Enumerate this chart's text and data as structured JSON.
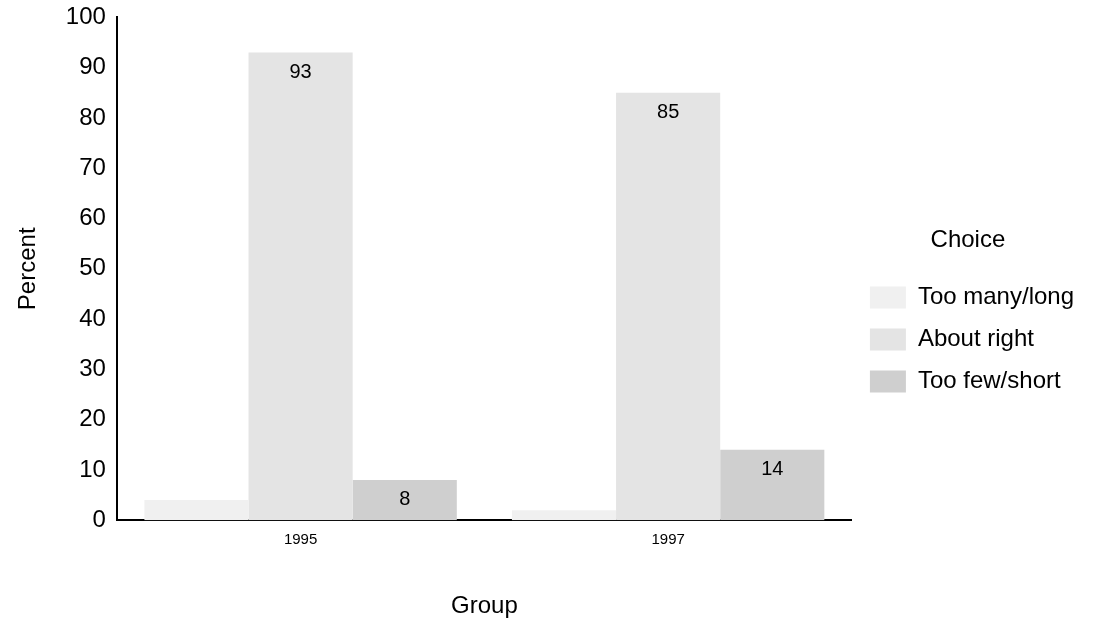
{
  "chart_data": {
    "type": "bar",
    "xlabel": "Group",
    "ylabel": "Percent",
    "legend_title": "Choice",
    "legend": "right",
    "categories": [
      "1995",
      "1997"
    ],
    "series": [
      {
        "name": "Too many/long",
        "color": "#f0f0f0",
        "values": [
          4,
          2
        ],
        "value_labels": [
          null,
          null
        ]
      },
      {
        "name": "About right",
        "color": "#e4e4e4",
        "values": [
          93,
          85
        ],
        "value_labels": [
          "93",
          "85"
        ]
      },
      {
        "name": "Too few/short",
        "color": "#cfcfcf",
        "values": [
          8,
          14
        ],
        "value_labels": [
          "8",
          "14"
        ]
      }
    ],
    "ylim": [
      0,
      100
    ],
    "yticks": [
      0,
      10,
      20,
      30,
      40,
      50,
      60,
      70,
      80,
      90,
      100
    ],
    "grid": false
  }
}
